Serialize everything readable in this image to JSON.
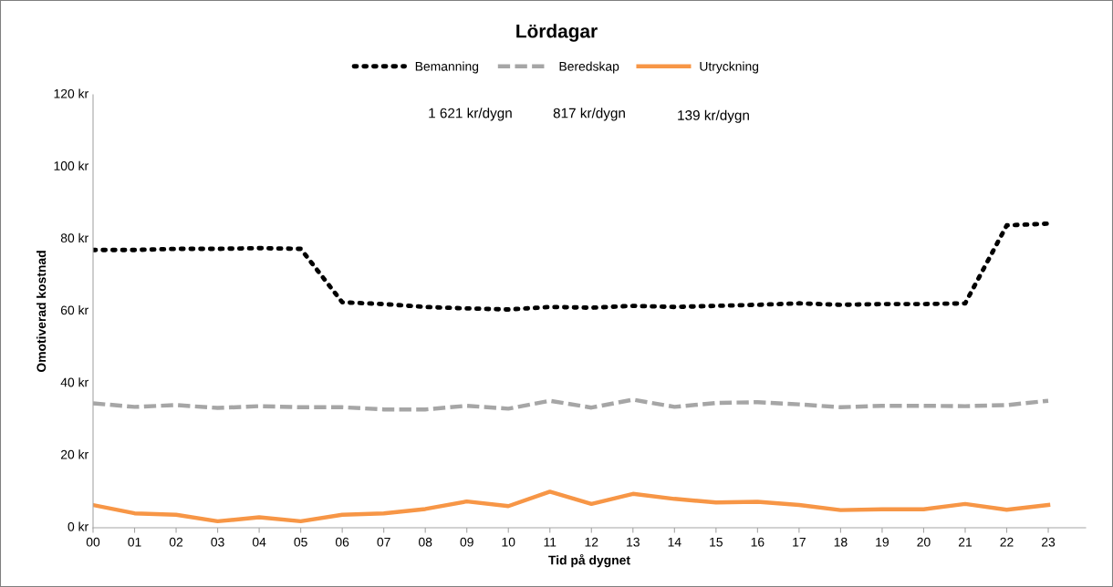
{
  "chart_data": {
    "type": "line",
    "title": "Lördagar",
    "xlabel": "Tid på dygnet",
    "ylabel": "Omotiverad kostnad",
    "categories": [
      "00",
      "01",
      "02",
      "03",
      "04",
      "05",
      "06",
      "07",
      "08",
      "09",
      "10",
      "11",
      "12",
      "13",
      "14",
      "15",
      "16",
      "17",
      "18",
      "19",
      "20",
      "21",
      "22",
      "23"
    ],
    "series": [
      {
        "name": "Bemanning",
        "color": "#000000",
        "line_style": "dotted",
        "values": [
          77,
          77,
          77.3,
          77.3,
          77.5,
          77.3,
          62.5,
          62,
          61.2,
          60.8,
          60.5,
          61.2,
          61,
          61.5,
          61.2,
          61.5,
          61.8,
          62.2,
          61.8,
          62,
          62,
          62.2,
          83.8,
          84.3
        ]
      },
      {
        "name": "Beredskap",
        "color": "#a6a6a6",
        "line_style": "dashed",
        "values": [
          34.5,
          33.5,
          34,
          33.2,
          33.7,
          33.4,
          33.4,
          32.8,
          32.8,
          33.8,
          33,
          35.2,
          33.3,
          35.5,
          33.5,
          34.6,
          34.8,
          34.2,
          33.4,
          33.8,
          33.8,
          33.7,
          34,
          35.2
        ]
      },
      {
        "name": "Utryckning",
        "color": "#f79646",
        "line_style": "solid",
        "values": [
          6.3,
          4,
          3.6,
          1.8,
          2.9,
          1.8,
          3.6,
          4,
          5.2,
          7.3,
          6,
          10,
          6.6,
          9.4,
          8,
          7,
          7.2,
          6.3,
          4.9,
          5.1,
          5.1,
          6.6,
          5,
          6.3
        ]
      }
    ],
    "ylim": [
      0,
      120
    ],
    "yticks": [
      {
        "value": 0,
        "label": "0 kr"
      },
      {
        "value": 20,
        "label": "20 kr"
      },
      {
        "value": 40,
        "label": "40 kr"
      },
      {
        "value": 60,
        "label": "60 kr"
      },
      {
        "value": 80,
        "label": "80 kr"
      },
      {
        "value": 100,
        "label": "100 kr"
      },
      {
        "value": 120,
        "label": "120 kr"
      }
    ],
    "annotations": [
      "1 621 kr/dygn",
      "817 kr/dygn",
      "139 kr/dygn"
    ],
    "legend": "top",
    "grid": false,
    "marker": "none"
  }
}
